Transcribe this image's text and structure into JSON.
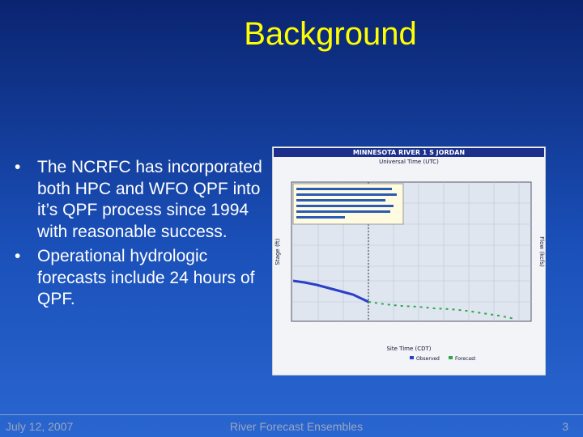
{
  "slide": {
    "title": "Background",
    "bullets": [
      "The NCRFC has incorporated both HPC and WFO QPF into it’s QPF process since 1994 with reasonable success.",
      "Operational hydrologic forecasts include 24 hours of QPF."
    ],
    "footer": {
      "date": "July 12, 2007",
      "center": "River Forecast Ensembles",
      "page": "3"
    }
  },
  "figure": {
    "title": "MINNESOTA RIVER 1 S JORDAN",
    "top_axis_label": "Universal Time (UTC)",
    "bottom_axis_label": "Site Time (CDT)",
    "left_axis_label": "Stage (ft)",
    "right_axis_label": "Flow (kcfs)",
    "legend": [
      "Observed",
      "Forecast"
    ]
  }
}
